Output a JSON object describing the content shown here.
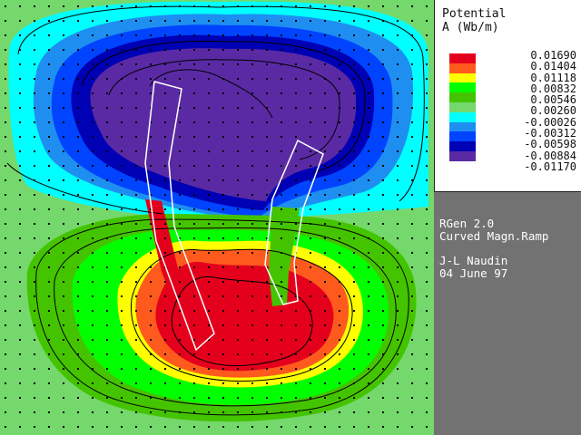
{
  "legend": {
    "title_line1": "Potential",
    "title_line2": "A (Wb/m)",
    "levels": [
      {
        "color": "#e4001c",
        "value": "0.01690"
      },
      {
        "color": "#ff5a1e",
        "value": "0.01404"
      },
      {
        "color": "#ffff00",
        "value": "0.01118"
      },
      {
        "color": "#00ff00",
        "value": "0.00832"
      },
      {
        "color": "#44c400",
        "value": "0.00546"
      },
      {
        "color": "#74d86c",
        "value": "0.00260"
      },
      {
        "color": "#00ffff",
        "value": "-0.00026"
      },
      {
        "color": "#1e8ff0",
        "value": "-0.00312"
      },
      {
        "color": "#0044ff",
        "value": "-0.00598"
      },
      {
        "color": "#0000b4",
        "value": "-0.00884"
      },
      {
        "color": "#5a2aa4",
        "value": "-0.01170"
      }
    ]
  },
  "info": {
    "line1": "RGen 2.0",
    "line2": "Curved Magn.Ramp",
    "line3": "J-L Naudin",
    "line4": "04 June 97"
  },
  "plot": {
    "background_color": "#74d86c",
    "contour_line_color": "#000000",
    "magnet_outline_color": "#ffffff"
  }
}
